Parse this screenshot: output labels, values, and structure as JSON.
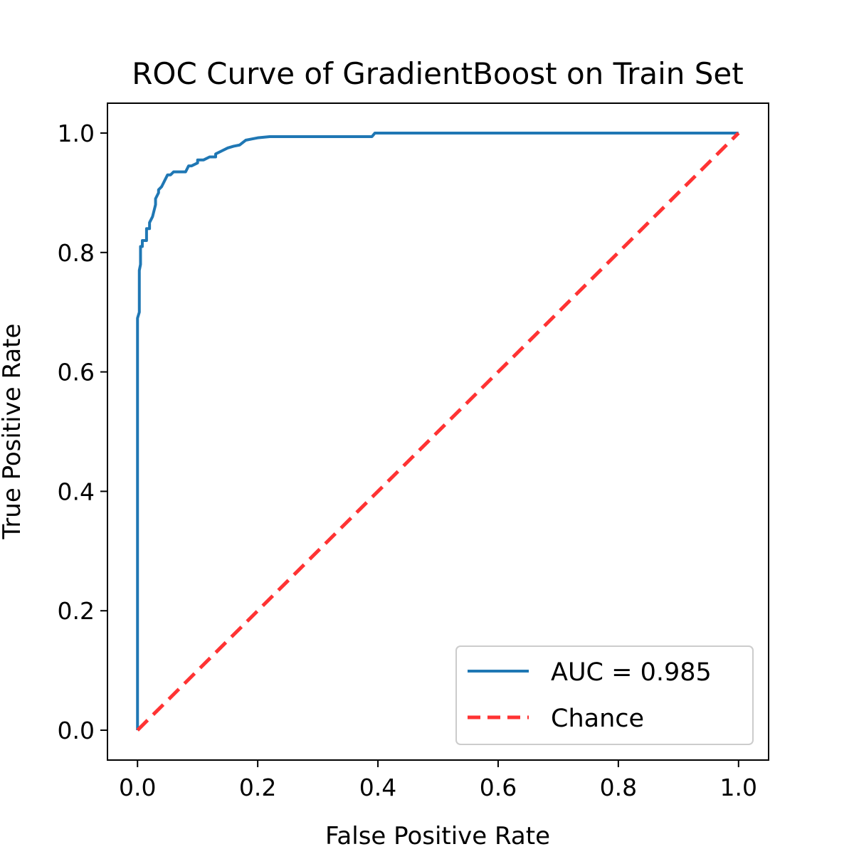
{
  "chart_data": {
    "type": "line",
    "title": "ROC Curve of GradientBoost on Train Set",
    "xlabel": "False Positive Rate",
    "ylabel": "True Positive Rate",
    "xlim": [
      -0.05,
      1.05
    ],
    "ylim": [
      -0.05,
      1.05
    ],
    "xticks": [
      "0.0",
      "0.2",
      "0.4",
      "0.6",
      "0.8",
      "1.0"
    ],
    "yticks": [
      "0.0",
      "0.2",
      "0.4",
      "0.6",
      "0.8",
      "1.0"
    ],
    "grid": false,
    "legend_position": "lower right",
    "series": [
      {
        "name": "AUC = 0.985",
        "color": "#1f77b4",
        "style": "solid",
        "x": [
          0.0,
          0.0,
          0.003,
          0.003,
          0.005,
          0.005,
          0.008,
          0.008,
          0.015,
          0.015,
          0.02,
          0.02,
          0.025,
          0.03,
          0.03,
          0.035,
          0.035,
          0.04,
          0.045,
          0.05,
          0.055,
          0.06,
          0.065,
          0.08,
          0.085,
          0.09,
          0.1,
          0.1,
          0.11,
          0.12,
          0.13,
          0.13,
          0.14,
          0.15,
          0.16,
          0.17,
          0.18,
          0.19,
          0.2,
          0.22,
          0.25,
          0.3,
          0.35,
          0.39,
          0.395,
          0.4,
          0.5,
          0.6,
          0.7,
          0.8,
          0.9,
          1.0
        ],
        "y": [
          0.0,
          0.69,
          0.7,
          0.77,
          0.78,
          0.81,
          0.81,
          0.82,
          0.82,
          0.84,
          0.84,
          0.85,
          0.86,
          0.88,
          0.89,
          0.9,
          0.905,
          0.91,
          0.92,
          0.93,
          0.93,
          0.935,
          0.935,
          0.935,
          0.945,
          0.945,
          0.95,
          0.955,
          0.955,
          0.96,
          0.96,
          0.965,
          0.97,
          0.975,
          0.978,
          0.98,
          0.988,
          0.99,
          0.992,
          0.994,
          0.994,
          0.994,
          0.994,
          0.994,
          1.0,
          1.0,
          1.0,
          1.0,
          1.0,
          1.0,
          1.0,
          1.0
        ]
      },
      {
        "name": "Chance",
        "color": "#ff3333",
        "style": "dashed",
        "x": [
          0.0,
          1.0
        ],
        "y": [
          0.0,
          1.0
        ]
      }
    ]
  }
}
